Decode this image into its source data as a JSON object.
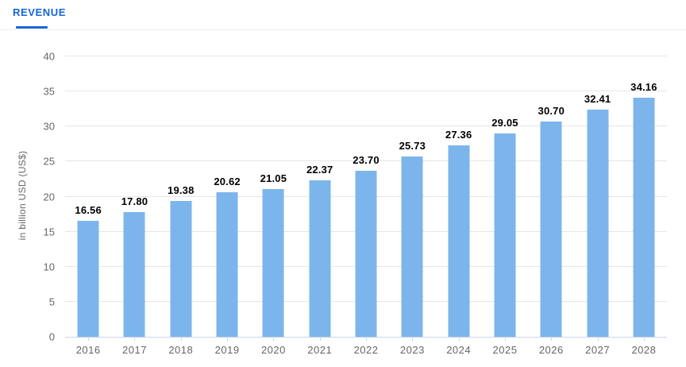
{
  "tab_bar": {
    "tabs": [
      {
        "label": "REVENUE",
        "active": true
      }
    ]
  },
  "colors": {
    "tab_active": "#1565d8",
    "bar": "#7cb5ec",
    "grid": "#e6e6e6",
    "axis_line": "#ccd6eb",
    "tick_text": "#666666",
    "value_label": "#000000"
  },
  "chart_data": {
    "type": "bar",
    "title": "Revenue",
    "categories": [
      "2016",
      "2017",
      "2018",
      "2019",
      "2020",
      "2021",
      "2022",
      "2023",
      "2024",
      "2025",
      "2026",
      "2027",
      "2028"
    ],
    "values": [
      16.56,
      17.8,
      19.38,
      20.62,
      21.05,
      22.37,
      23.7,
      25.73,
      27.36,
      29.05,
      30.7,
      32.41,
      34.16
    ],
    "value_decimals": 2,
    "xlabel": "",
    "ylabel": "in billion USD (US$)",
    "ylim": [
      0,
      40
    ],
    "yticks": [
      0,
      5,
      10,
      15,
      20,
      25,
      30,
      35,
      40
    ],
    "grid": true,
    "legend": "none",
    "bar_color": "#7cb5ec"
  }
}
